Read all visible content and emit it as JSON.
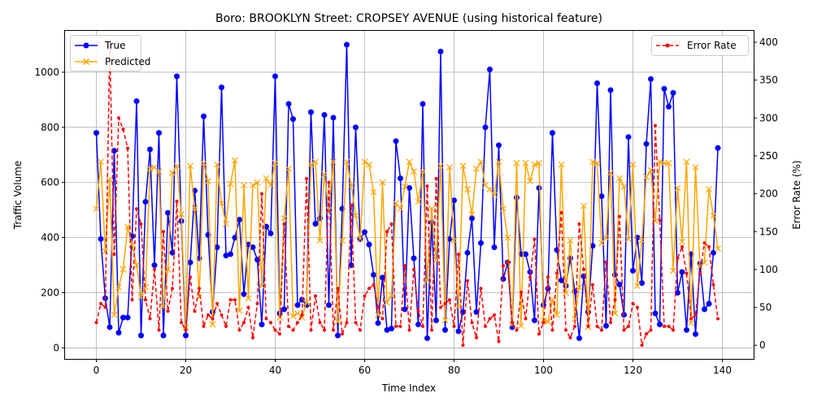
{
  "chart_data": {
    "type": "line",
    "title": "Boro: BROOKLYN Street: CROPSEY AVENUE (using historical feature)",
    "xlabel": "Time Index",
    "ylabel": "Traffic Volume",
    "y2label": "Error Rate (%)",
    "xlim": [
      -7,
      147
    ],
    "ylim": [
      -40,
      1150
    ],
    "y2lim": [
      -18,
      415
    ],
    "xticks": [
      0,
      20,
      40,
      60,
      80,
      100,
      120,
      140
    ],
    "yticks": [
      0,
      200,
      400,
      600,
      800,
      1000
    ],
    "y2ticks": [
      0,
      50,
      100,
      150,
      200,
      250,
      300,
      350,
      400
    ],
    "grid": true,
    "legend_left_placement": "upper-left",
    "legend_right_placement": "upper-right",
    "series": [
      {
        "name": "True",
        "axis": "left",
        "color": "#0000ff",
        "marker": "circle",
        "values": [
          780,
          395,
          180,
          75,
          715,
          55,
          110,
          110,
          405,
          895,
          45,
          530,
          720,
          300,
          780,
          45,
          490,
          345,
          985,
          460,
          45,
          310,
          570,
          325,
          840,
          410,
          130,
          365,
          945,
          335,
          340,
          400,
          465,
          195,
          375,
          365,
          320,
          85,
          440,
          415,
          985,
          125,
          140,
          885,
          830,
          155,
          175,
          155,
          855,
          450,
          470,
          845,
          155,
          835,
          45,
          505,
          1100,
          300,
          800,
          395,
          420,
          375,
          265,
          90,
          255,
          65,
          70,
          750,
          615,
          140,
          580,
          325,
          85,
          885,
          35,
          455,
          100,
          1075,
          65,
          395,
          535,
          60,
          130,
          345,
          470,
          130,
          380,
          800,
          1010,
          365,
          735,
          250,
          310,
          75,
          545,
          340,
          340,
          275,
          100,
          580,
          155,
          215,
          780,
          355,
          245,
          225,
          325,
          205,
          35,
          260,
          130,
          370,
          960,
          550,
          80,
          935,
          265,
          230,
          120,
          765,
          280,
          400,
          235,
          740,
          975,
          125,
          85,
          940,
          875,
          925,
          200,
          275,
          65,
          340,
          50,
          305,
          140,
          160,
          345,
          725
        ]
      },
      {
        "name": "Predicted",
        "axis": "left",
        "color": "#ffa500",
        "marker": "x",
        "values": [
          505,
          675,
          350,
          610,
          120,
          220,
          285,
          440,
          375,
          300,
          185,
          220,
          650,
          655,
          640,
          150,
          285,
          635,
          660,
          485,
          75,
          660,
          505,
          185,
          670,
          605,
          85,
          665,
          525,
          450,
          595,
          680,
          135,
          590,
          180,
          590,
          600,
          225,
          615,
          590,
          670,
          110,
          470,
          650,
          115,
          125,
          110,
          165,
          665,
          675,
          390,
          630,
          500,
          675,
          95,
          390,
          675,
          590,
          480,
          395,
          675,
          665,
          565,
          120,
          600,
          165,
          190,
          525,
          505,
          585,
          675,
          640,
          530,
          640,
          245,
          505,
          320,
          660,
          100,
          655,
          390,
          150,
          660,
          575,
          485,
          650,
          675,
          590,
          575,
          555,
          675,
          505,
          400,
          85,
          670,
          80,
          670,
          605,
          665,
          670,
          100,
          95,
          175,
          120,
          665,
          200,
          390,
          105,
          220,
          515,
          75,
          675,
          670,
          380,
          400,
          635,
          125,
          615,
          585,
          395,
          665,
          225,
          390,
          620,
          645,
          460,
          675,
          670,
          670,
          280,
          580,
          385,
          675,
          90,
          655,
          295,
          310,
          575,
          480,
          360
        ]
      },
      {
        "name": "Error Rate",
        "axis": "right",
        "color": "#ff0000",
        "marker": "dot",
        "linestyle": "dashed",
        "values": [
          30,
          55,
          50,
          395,
          120,
          300,
          285,
          260,
          60,
          180,
          160,
          60,
          35,
          100,
          20,
          150,
          45,
          75,
          190,
          30,
          20,
          90,
          45,
          75,
          25,
          40,
          35,
          55,
          40,
          25,
          60,
          60,
          20,
          30,
          50,
          10,
          55,
          200,
          35,
          30,
          20,
          15,
          160,
          25,
          20,
          30,
          40,
          220,
          20,
          65,
          30,
          20,
          215,
          20,
          75,
          15,
          30,
          185,
          30,
          20,
          65,
          75,
          80,
          50,
          35,
          150,
          160,
          25,
          25,
          105,
          20,
          100,
          45,
          25,
          210,
          20,
          220,
          50,
          55,
          60,
          25,
          120,
          0,
          85,
          30,
          10,
          75,
          25,
          35,
          40,
          5,
          105,
          110,
          30,
          20,
          70,
          35,
          90,
          140,
          15,
          30,
          90,
          20,
          95,
          175,
          20,
          10,
          25,
          160,
          100,
          25,
          80,
          25,
          20,
          110,
          30,
          60,
          170,
          20,
          25,
          55,
          50,
          0,
          15,
          20,
          290,
          165,
          25,
          25,
          20,
          115,
          130,
          95,
          35,
          40,
          95,
          135,
          130,
          80,
          35
        ]
      }
    ]
  }
}
